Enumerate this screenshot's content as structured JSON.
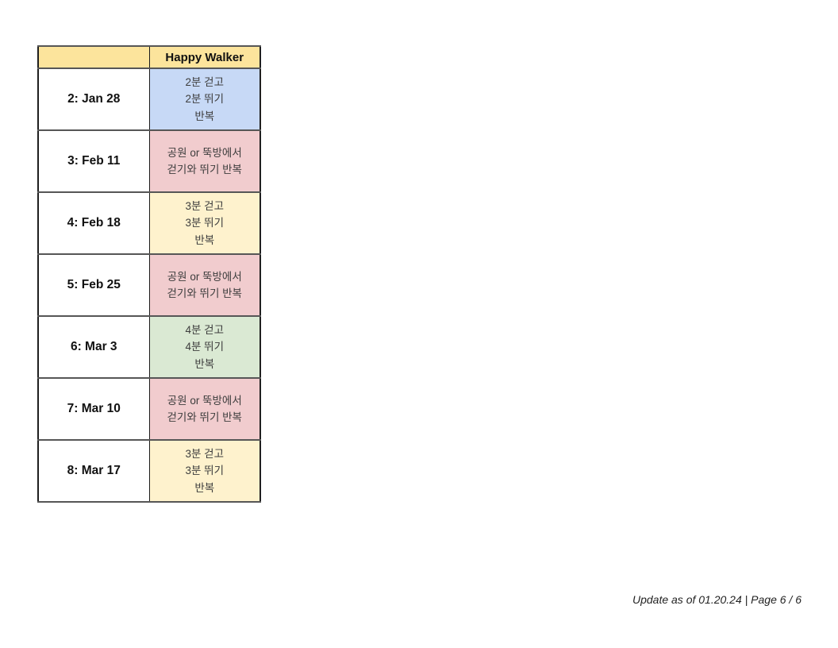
{
  "document": {
    "footer": "Update as of 01.20.24 | Page 6 / 6"
  },
  "colors": {
    "header_bg": "#FCE49C",
    "blue_cell": "#C7D9F6",
    "pink_cell": "#F1CCCE",
    "yellow_cell": "#FEF2CD",
    "green_cell": "#DAE9D3"
  },
  "table": {
    "header": {
      "week_col": "",
      "program_col": "Happy Walker"
    },
    "rows": [
      {
        "date": "2: Jan 28",
        "activity": "2분 걷고\n2분 뛰기\n반복",
        "bg": "#C7D9F6"
      },
      {
        "date": "3: Feb 11",
        "activity": "공원 or 뚝방에서\n걷기와 뛰기 반복",
        "bg": "#F1CCCE"
      },
      {
        "date": "4: Feb 18",
        "activity": "3분 걷고\n3분 뛰기\n반복",
        "bg": "#FEF2CD"
      },
      {
        "date": "5: Feb 25",
        "activity": "공원 or 뚝방에서\n걷기와 뛰기 반복",
        "bg": "#F1CCCE"
      },
      {
        "date": "6: Mar 3",
        "activity": "4분 걷고\n4분 뛰기\n반복",
        "bg": "#DAE9D3"
      },
      {
        "date": "7: Mar 10",
        "activity": "공원 or 뚝방에서\n걷기와 뛰기 반복",
        "bg": "#F1CCCE"
      },
      {
        "date": "8: Mar 17",
        "activity": "3분 걷고\n3분 뛰기\n반복",
        "bg": "#FEF2CD"
      }
    ]
  }
}
